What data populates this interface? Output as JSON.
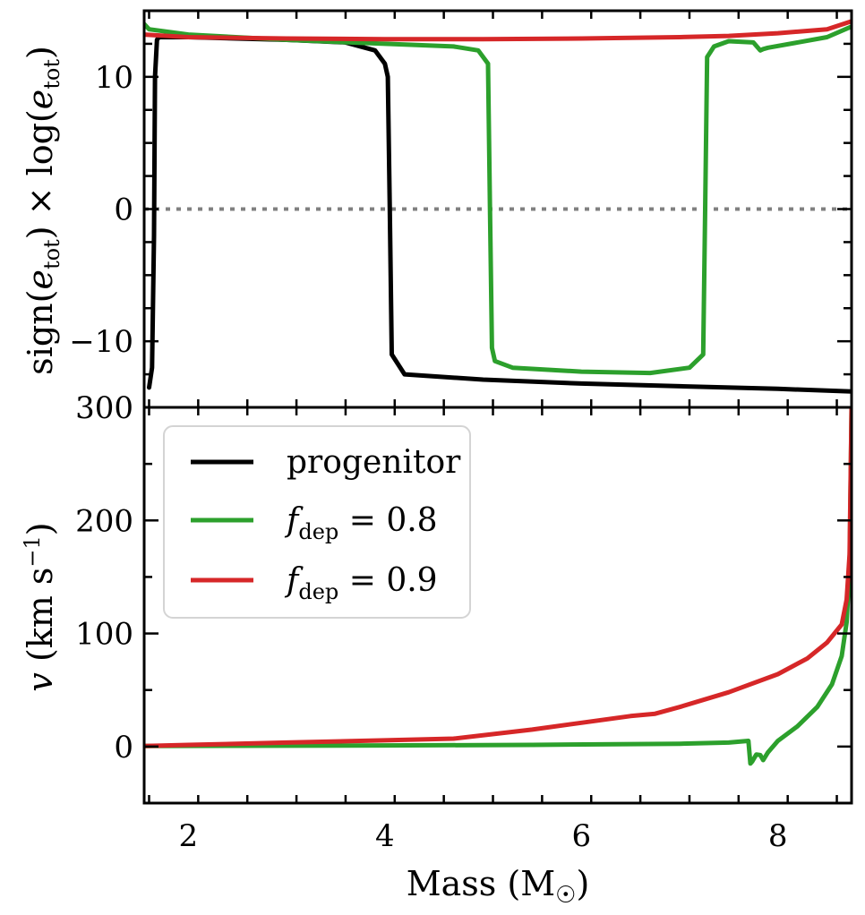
{
  "chart_data": [
    {
      "type": "line",
      "panel": "top",
      "ylabel": "sign(e_tot) × log(e_tot)",
      "xlim": [
        1.55,
        8.75
      ],
      "ylim": [
        -15,
        15
      ],
      "yticks": [
        10,
        0,
        -10
      ],
      "ytick_labels": [
        "10",
        "0",
        "−10"
      ],
      "reference_line": {
        "y": 0,
        "style": "dotted",
        "color": "#808080"
      },
      "series": [
        {
          "name": "progenitor",
          "color": "#000000",
          "x": [
            1.6,
            1.63,
            1.65,
            1.66,
            1.68,
            1.7,
            2.0,
            3.0,
            3.6,
            3.9,
            4.0,
            4.03,
            4.05,
            4.07,
            4.2,
            5.0,
            6.0,
            7.0,
            8.0,
            8.75
          ],
          "y": [
            -13.5,
            -12.0,
            -2.0,
            10.0,
            12.8,
            13.0,
            13.0,
            12.8,
            12.6,
            12.0,
            11.0,
            10.0,
            0.0,
            -11.0,
            -12.5,
            -12.9,
            -13.2,
            -13.4,
            -13.6,
            -13.8
          ]
        },
        {
          "name": "f_dep = 0.8",
          "color": "#2ca02c",
          "x": [
            1.55,
            1.6,
            2.0,
            3.0,
            4.0,
            4.7,
            4.95,
            5.05,
            5.07,
            5.09,
            5.12,
            5.3,
            6.0,
            6.7,
            7.1,
            7.24,
            7.26,
            7.28,
            7.35,
            7.5,
            7.75,
            7.82,
            7.85,
            7.9,
            8.2,
            8.5,
            8.75
          ],
          "y": [
            14.0,
            13.6,
            13.2,
            12.8,
            12.5,
            12.3,
            12.0,
            11.0,
            0.0,
            -10.5,
            -11.5,
            -12.0,
            -12.3,
            -12.4,
            -12.0,
            -11.0,
            0.0,
            11.5,
            12.3,
            12.7,
            12.6,
            12.0,
            12.1,
            12.2,
            12.6,
            13.0,
            13.8
          ]
        },
        {
          "name": "f_dep = 0.9",
          "color": "#d62728",
          "x": [
            1.55,
            2.0,
            3.0,
            4.0,
            5.0,
            6.0,
            7.0,
            7.5,
            8.0,
            8.5,
            8.75
          ],
          "y": [
            13.2,
            13.0,
            12.9,
            12.85,
            12.85,
            12.9,
            13.0,
            13.1,
            13.3,
            13.6,
            14.2
          ]
        }
      ]
    },
    {
      "type": "line",
      "panel": "bottom",
      "xlabel": "Mass (M☉)",
      "ylabel": "v (km s⁻¹)",
      "xlim": [
        1.55,
        8.75
      ],
      "ylim": [
        -50,
        300
      ],
      "yticks": [
        300,
        200,
        100,
        0
      ],
      "ytick_labels": [
        "300",
        "200",
        "100",
        "0"
      ],
      "xticks": [
        2,
        4,
        6,
        8
      ],
      "xtick_labels": [
        "2",
        "4",
        "6",
        "8"
      ],
      "legend": {
        "position": "top-left",
        "entries": [
          "progenitor",
          "f_dep = 0.8",
          "f_dep = 0.9"
        ]
      },
      "series": [
        {
          "name": "f_dep = 0.8",
          "color": "#2ca02c",
          "x": [
            1.55,
            2.5,
            4.0,
            5.5,
            7.0,
            7.5,
            7.7,
            7.72,
            7.74,
            7.78,
            7.82,
            7.85,
            7.9,
            8.0,
            8.2,
            8.4,
            8.55,
            8.65,
            8.7,
            8.73,
            8.75
          ],
          "y": [
            0.5,
            0.7,
            1.0,
            1.5,
            2.5,
            3.5,
            5.0,
            -15.0,
            -13.0,
            -7.0,
            -7.5,
            -12.0,
            -5.0,
            5.0,
            18.0,
            35.0,
            55.0,
            80.0,
            110.0,
            160.0,
            300.0
          ]
        },
        {
          "name": "f_dep = 0.9",
          "color": "#d62728",
          "x": [
            1.55,
            2.0,
            3.0,
            4.0,
            4.7,
            5.5,
            6.0,
            6.5,
            6.75,
            7.0,
            7.5,
            8.0,
            8.3,
            8.5,
            8.65,
            8.7,
            8.73,
            8.75
          ],
          "y": [
            0.5,
            1.5,
            3.5,
            5.5,
            7.0,
            15.0,
            21.0,
            27.0,
            29.0,
            35.0,
            48.0,
            64.0,
            78.0,
            92.0,
            108.0,
            130.0,
            170.0,
            300.0
          ]
        }
      ]
    }
  ],
  "legend_labels": {
    "progenitor": "progenitor",
    "fdep08_value": " = 0.8",
    "fdep09_value": " = 0.9",
    "f": "f",
    "dep": "dep"
  },
  "axis_text": {
    "top_ylabel_sign": "sign(",
    "top_ylabel_e": "e",
    "top_ylabel_tot": "tot",
    "top_ylabel_mid": ") × log(",
    "top_ylabel_end": ")",
    "bottom_ylabel_v": "v",
    "bottom_ylabel_units": " (km s",
    "bottom_ylabel_exp": "−1",
    "bottom_ylabel_close": ")",
    "xlabel_main": "Mass (M",
    "xlabel_sun": "☉",
    "xlabel_close": ")"
  }
}
